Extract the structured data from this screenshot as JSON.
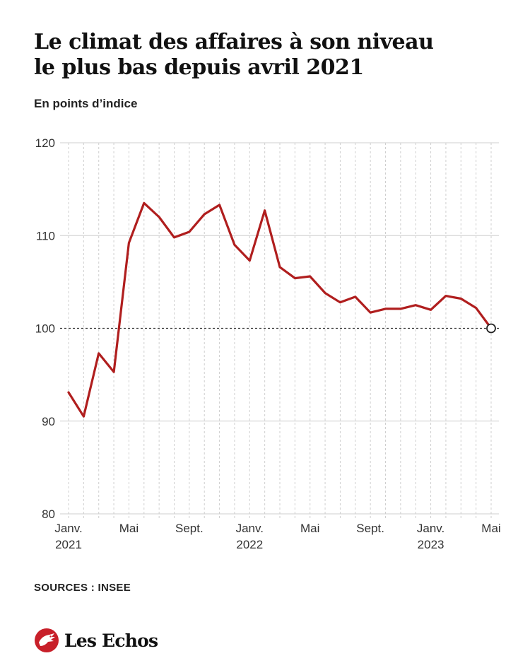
{
  "header": {
    "title_line1": "Le climat des affaires à son niveau",
    "title_line2": "le plus bas depuis avril 2021",
    "subtitle": "En points d’indice"
  },
  "footer": {
    "source": "SOURCES : INSEE",
    "logo_text": "Les Echos"
  },
  "colors": {
    "line": "#b01e1e",
    "logo": "#c8202a",
    "grid": "#cfcfcf",
    "reference_line": "#333333"
  },
  "chart_data": {
    "type": "line",
    "title": "Le climat des affaires à son niveau le plus bas depuis avril 2021",
    "ylabel": "En points d’indice",
    "ylim": [
      80,
      120
    ],
    "yticks": [
      80,
      90,
      100,
      110,
      120
    ],
    "reference_line": 100,
    "grid": "vertical line per month, horizontal line per y tick",
    "xlabels": [
      {
        "month": "2021-01",
        "line1": "Janv.",
        "line2": "2021"
      },
      {
        "month": "2021-05",
        "line1": "Mai",
        "line2": ""
      },
      {
        "month": "2021-09",
        "line1": "Sept.",
        "line2": ""
      },
      {
        "month": "2022-01",
        "line1": "Janv.",
        "line2": "2022"
      },
      {
        "month": "2022-05",
        "line1": "Mai",
        "line2": ""
      },
      {
        "month": "2022-09",
        "line1": "Sept.",
        "line2": ""
      },
      {
        "month": "2023-01",
        "line1": "Janv.",
        "line2": "2023"
      },
      {
        "month": "2023-05",
        "line1": "Mai",
        "line2": ""
      }
    ],
    "x": [
      "2021-01",
      "2021-02",
      "2021-03",
      "2021-04",
      "2021-05",
      "2021-06",
      "2021-07",
      "2021-08",
      "2021-09",
      "2021-10",
      "2021-11",
      "2021-12",
      "2022-01",
      "2022-02",
      "2022-03",
      "2022-04",
      "2022-05",
      "2022-06",
      "2022-07",
      "2022-08",
      "2022-09",
      "2022-10",
      "2022-11",
      "2022-12",
      "2023-01",
      "2023-02",
      "2023-03",
      "2023-04",
      "2023-05"
    ],
    "values": [
      93.1,
      90.5,
      97.3,
      95.3,
      109.2,
      113.5,
      112.0,
      109.8,
      110.4,
      112.3,
      113.3,
      109.0,
      107.3,
      112.7,
      106.6,
      105.4,
      105.6,
      103.8,
      102.8,
      103.4,
      101.7,
      102.1,
      102.1,
      102.5,
      102.0,
      103.5,
      103.2,
      102.2,
      100.0
    ],
    "last_point_marker": "hollow circle"
  }
}
